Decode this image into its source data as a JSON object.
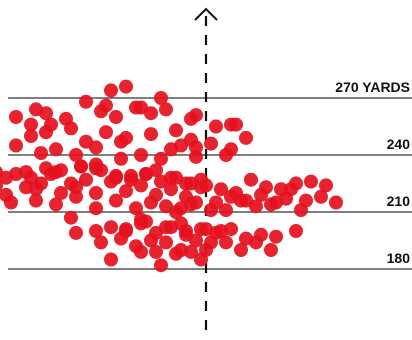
{
  "chart_data": {
    "type": "scatter",
    "title": "",
    "xlabel": "",
    "ylabel": "",
    "ylim": [
      169,
      281
    ],
    "xlim": [
      -55,
      28
    ],
    "grid": true,
    "colors": {
      "points": "#e5101e",
      "lines": "#333333",
      "center_line": "#111111",
      "text": "#111111"
    },
    "center_line": {
      "x": 0,
      "style": "dashed",
      "arrow_icon": "up-arrow-icon"
    },
    "gridlines": [
      {
        "value": 270,
        "label": "270 YARDS"
      },
      {
        "value": 240,
        "label": "240"
      },
      {
        "value": 210,
        "label": "210"
      },
      {
        "value": 180,
        "label": "180"
      }
    ],
    "x": [
      -19,
      -16,
      -9,
      -34,
      -38,
      -32,
      -28,
      -31,
      -35,
      -21,
      -14,
      -11,
      -2,
      -18,
      -20,
      -24,
      -13,
      -8,
      -3,
      6,
      5,
      4,
      -35,
      -32,
      -27,
      -24,
      -20,
      -16,
      -11,
      -6,
      -3,
      -2,
      -38,
      -33,
      -30,
      -26,
      -22,
      -17,
      -13,
      -9,
      -7,
      -2,
      2,
      5,
      8,
      -47,
      -44,
      -40,
      -36,
      -32,
      -29,
      -25,
      -22,
      -18,
      -15,
      -12,
      -10,
      -7,
      -4,
      -1,
      -42,
      -38,
      -35,
      -31,
      -27,
      -24,
      -21,
      -18,
      -15,
      -12,
      -9,
      -6,
      -3,
      0,
      3,
      6,
      9,
      12,
      15,
      18,
      21,
      24,
      -52,
      -49,
      -44,
      -40,
      -36,
      -33,
      -29,
      -26,
      -22,
      -19,
      -16,
      -13,
      -10,
      -7,
      -4,
      -1,
      2,
      5,
      8,
      11,
      14,
      17,
      20,
      23,
      26,
      -47,
      -43,
      -39,
      -34,
      -30,
      -26,
      -22,
      -18,
      -14,
      -11,
      -8,
      -5,
      -2,
      1,
      4,
      7,
      10,
      13,
      16,
      19,
      -26,
      -22,
      -19,
      -16,
      -13,
      -10,
      -7,
      -4,
      -1,
      2,
      5,
      8,
      11,
      14,
      -17,
      -14,
      -11,
      -8,
      -5,
      -2,
      1,
      4,
      7,
      10,
      13,
      -16,
      -12,
      -8,
      -4,
      0,
      3,
      -21,
      -13,
      -10,
      -6,
      -3,
      0,
      -1,
      -13,
      -5,
      -27,
      18,
      -9,
      -19,
      -34,
      -30,
      -42,
      -5,
      1,
      -25,
      -22,
      -17,
      -3,
      -6
    ],
    "y": [
      274,
      276,
      270,
      264,
      260,
      262,
      259,
      256,
      256,
      263,
      265,
      262,
      261,
      260,
      266,
      268,
      265,
      264,
      259,
      256,
      243,
      240,
      250,
      252,
      254,
      247,
      252,
      249,
      251,
      253,
      248,
      244,
      245,
      241,
      243,
      240,
      244,
      247,
      240,
      238,
      243,
      239,
      255,
      256,
      249,
      225,
      227,
      228,
      231,
      233,
      232,
      234,
      235,
      228,
      229,
      230,
      232,
      228,
      225,
      227,
      224,
      230,
      228,
      230,
      225,
      227,
      232,
      229,
      227,
      230,
      226,
      228,
      225,
      224,
      222,
      220,
      227,
      223,
      222,
      225,
      226,
      224,
      227,
      229,
      223,
      219,
      223,
      225,
      220,
      223,
      220,
      226,
      221,
      224,
      219,
      222,
      218,
      223,
      215,
      218,
      216,
      219,
      215,
      222,
      216,
      218,
      215,
      212,
      217,
      215,
      216,
      214,
      218,
      212,
      216,
      212,
      215,
      213,
      212,
      215,
      211,
      211,
      216,
      213,
      214,
      217,
      211,
      199,
      200,
      202,
      201,
      204,
      199,
      202,
      198,
      201,
      199,
      201,
      196,
      198,
      197,
      196,
      192,
      195,
      194,
      190,
      195,
      194,
      194,
      190,
      194,
      190,
      200,
      205,
      202,
      200,
      201,
      200,
      194,
      189,
      189,
      188,
      189,
      190,
      185,
      206,
      204,
      207,
      200,
      182,
      185,
      222,
      231,
      231,
      245,
      246,
      234,
      233,
      238,
      214,
      210
    ]
  }
}
